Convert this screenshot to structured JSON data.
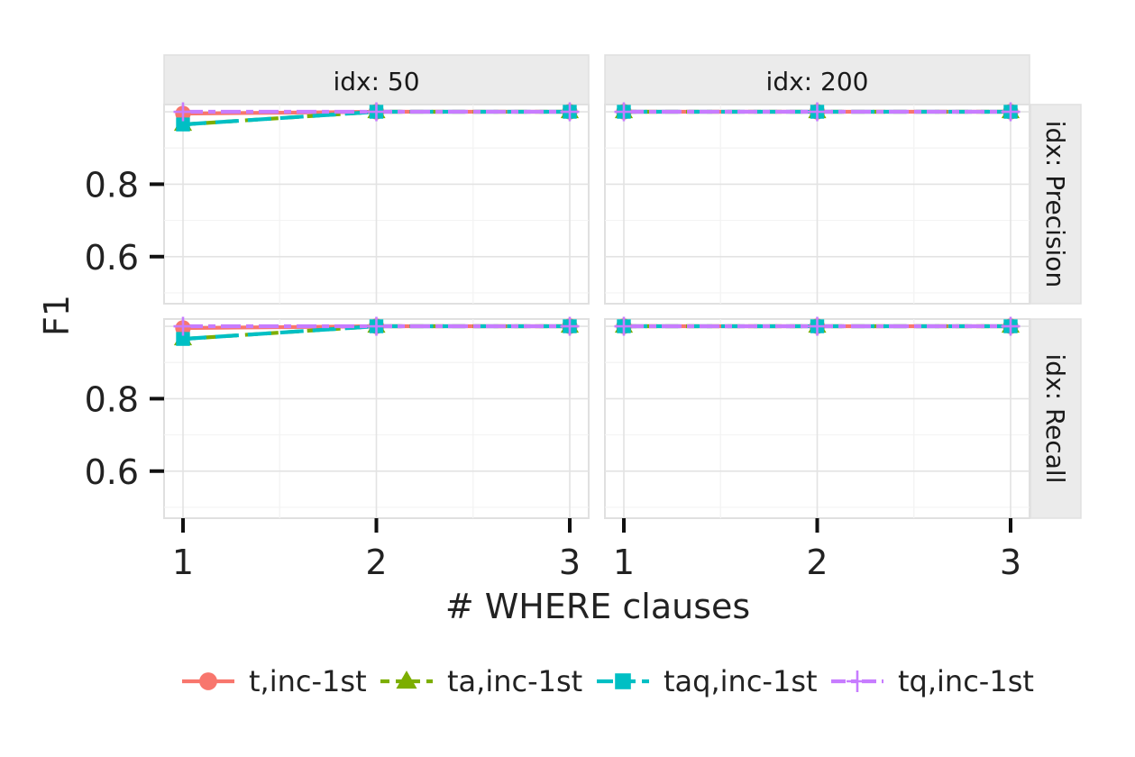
{
  "chart_data": {
    "type": "line",
    "xlabel": "# WHERE clauses",
    "ylabel": "F1",
    "x": [
      1,
      2,
      3
    ],
    "x_ticks": [
      1,
      2,
      3
    ],
    "ylim": [
      0.47,
      1.02
    ],
    "y_ticks": [
      0.6,
      0.8
    ],
    "grid": true,
    "legend_position": "bottom",
    "facet_columns": [
      {
        "key": "idx50",
        "label": "idx: 50"
      },
      {
        "key": "idx200",
        "label": "idx: 200"
      }
    ],
    "facet_rows": [
      {
        "key": "precision",
        "label": "idx: Precision"
      },
      {
        "key": "recall",
        "label": "idx: Recall"
      }
    ],
    "series": [
      {
        "name": "t,inc-1st",
        "color": "#f8766d",
        "marker": "circle",
        "dash": "solid"
      },
      {
        "name": "ta,inc-1st",
        "color": "#7cae00",
        "marker": "triangle",
        "dash": "dashed"
      },
      {
        "name": "taq,inc-1st",
        "color": "#00bfc4",
        "marker": "square",
        "dash": "longdash"
      },
      {
        "name": "tq,inc-1st",
        "color": "#c77cff",
        "marker": "plus",
        "dash": "twodash"
      }
    ],
    "panels": [
      {
        "row": "precision",
        "col": "idx50",
        "values": {
          "t,inc-1st": [
            0.995,
            1.0,
            1.0
          ],
          "ta,inc-1st": [
            0.965,
            1.0,
            1.0
          ],
          "taq,inc-1st": [
            0.965,
            1.0,
            1.0
          ],
          "tq,inc-1st": [
            1.0,
            1.0,
            1.0
          ]
        }
      },
      {
        "row": "precision",
        "col": "idx200",
        "values": {
          "t,inc-1st": [
            1.0,
            1.0,
            1.0
          ],
          "ta,inc-1st": [
            1.0,
            1.0,
            1.0
          ],
          "taq,inc-1st": [
            1.0,
            1.0,
            1.0
          ],
          "tq,inc-1st": [
            1.0,
            1.0,
            1.0
          ]
        }
      },
      {
        "row": "recall",
        "col": "idx50",
        "values": {
          "t,inc-1st": [
            0.995,
            1.0,
            1.0
          ],
          "ta,inc-1st": [
            0.965,
            1.0,
            1.0
          ],
          "taq,inc-1st": [
            0.965,
            1.0,
            1.0
          ],
          "tq,inc-1st": [
            1.0,
            1.0,
            1.0
          ]
        }
      },
      {
        "row": "recall",
        "col": "idx200",
        "values": {
          "t,inc-1st": [
            1.0,
            1.0,
            1.0
          ],
          "ta,inc-1st": [
            1.0,
            1.0,
            1.0
          ],
          "taq,inc-1st": [
            1.0,
            1.0,
            1.0
          ],
          "tq,inc-1st": [
            1.0,
            1.0,
            1.0
          ]
        }
      }
    ]
  }
}
